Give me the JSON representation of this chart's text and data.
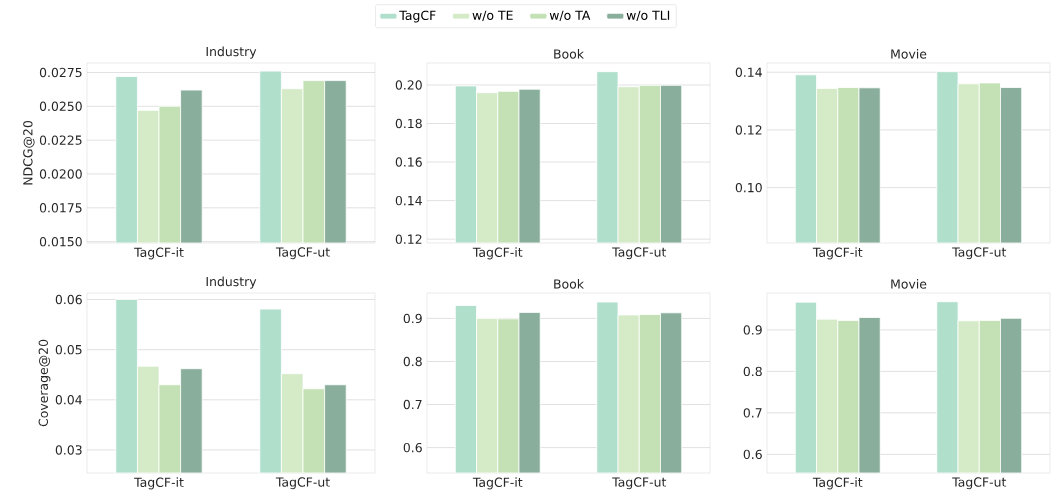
{
  "chart_data": [
    {
      "type": "bar",
      "title": "Industry",
      "ylabel": "NDCG@20",
      "categories": [
        "TagCF-it",
        "TagCF-ut"
      ],
      "legend": "top",
      "grid": "y",
      "ylim": [
        0.0149,
        0.0282
      ],
      "yticks": [
        {
          "value": 0.015,
          "label": "0.0150"
        },
        0.0175,
        {
          "value": 0.02,
          "label": "0.0200"
        },
        0.0225,
        {
          "value": 0.025,
          "label": "0.0250"
        },
        0.0275
      ],
      "series": [
        {
          "name": "TagCF",
          "color": "#b0dfcc",
          "values": [
            0.0272,
            0.0276
          ]
        },
        {
          "name": "w/o TE",
          "color": "#d5ebc8",
          "values": [
            0.0247,
            0.0263
          ]
        },
        {
          "name": "w/o TA",
          "color": "#c4e1b6",
          "values": [
            0.025,
            0.0269
          ]
        },
        {
          "name": "w/o TLI",
          "color": "#8aae9c",
          "values": [
            0.0262,
            0.0269
          ]
        }
      ]
    },
    {
      "type": "bar",
      "title": "Book",
      "categories": [
        "TagCF-it",
        "TagCF-ut"
      ],
      "grid": "y",
      "ylim": [
        0.118,
        0.2114
      ],
      "yticks": [
        0.12,
        0.14,
        0.16,
        0.18,
        {
          "value": 0.2,
          "label": "0.20"
        }
      ],
      "series": [
        {
          "color": "#b0dfcc",
          "values": [
            0.1995,
            0.2069
          ]
        },
        {
          "color": "#d5ebc8",
          "values": [
            0.196,
            0.1991
          ]
        },
        {
          "color": "#c4e1b6",
          "values": [
            0.1967,
            0.1998
          ]
        },
        {
          "color": "#8aae9c",
          "values": [
            0.1978,
            0.1998
          ]
        }
      ]
    },
    {
      "type": "bar",
      "title": "Movie",
      "categories": [
        "TagCF-it",
        "TagCF-ut"
      ],
      "grid": "y",
      "ylim": [
        0.0808,
        0.1432
      ],
      "yticks": [
        {
          "value": 0.1,
          "label": "0.10"
        },
        0.12,
        0.14
      ],
      "series": [
        {
          "color": "#b0dfcc",
          "values": [
            0.1391,
            0.1402
          ]
        },
        {
          "color": "#d5ebc8",
          "values": [
            0.1344,
            0.136
          ]
        },
        {
          "color": "#c4e1b6",
          "values": [
            0.1347,
            0.1363
          ]
        },
        {
          "color": "#8aae9c",
          "values": [
            0.1346,
            0.1347
          ]
        }
      ]
    },
    {
      "type": "bar",
      "title": "Industry",
      "ylabel": "Coverage@20",
      "categories": [
        "TagCF-it",
        "TagCF-ut"
      ],
      "grid": "y",
      "ylim": [
        0.0254,
        0.0613
      ],
      "yticks": [
        0.03,
        0.04,
        0.05,
        0.06
      ],
      "series": [
        {
          "color": "#b0dfcc",
          "values": [
            0.06,
            0.0581
          ]
        },
        {
          "color": "#d5ebc8",
          "values": [
            0.0467,
            0.0452
          ]
        },
        {
          "color": "#c4e1b6",
          "values": [
            0.043,
            0.0422
          ]
        },
        {
          "color": "#8aae9c",
          "values": [
            0.0462,
            0.043
          ]
        }
      ]
    },
    {
      "type": "bar",
      "title": "Book",
      "categories": [
        "TagCF-it",
        "TagCF-ut"
      ],
      "grid": "y",
      "ylim": [
        0.541,
        0.959
      ],
      "yticks": [
        0.6,
        0.7,
        0.8,
        0.9
      ],
      "series": [
        {
          "color": "#b0dfcc",
          "values": [
            0.93,
            0.938
          ]
        },
        {
          "color": "#d5ebc8",
          "values": [
            0.9,
            0.908
          ]
        },
        {
          "color": "#c4e1b6",
          "values": [
            0.899,
            0.909
          ]
        },
        {
          "color": "#8aae9c",
          "values": [
            0.914,
            0.913
          ]
        }
      ]
    },
    {
      "type": "bar",
      "title": "Movie",
      "categories": [
        "TagCF-it",
        "TagCF-ut"
      ],
      "grid": "y",
      "ylim": [
        0.555,
        0.989
      ],
      "yticks": [
        0.6,
        0.7,
        0.8,
        0.9
      ],
      "series": [
        {
          "color": "#b0dfcc",
          "values": [
            0.967,
            0.968
          ]
        },
        {
          "color": "#d5ebc8",
          "values": [
            0.926,
            0.922
          ]
        },
        {
          "color": "#c4e1b6",
          "values": [
            0.923,
            0.923
          ]
        },
        {
          "color": "#8aae9c",
          "values": [
            0.93,
            0.928
          ]
        }
      ]
    }
  ]
}
